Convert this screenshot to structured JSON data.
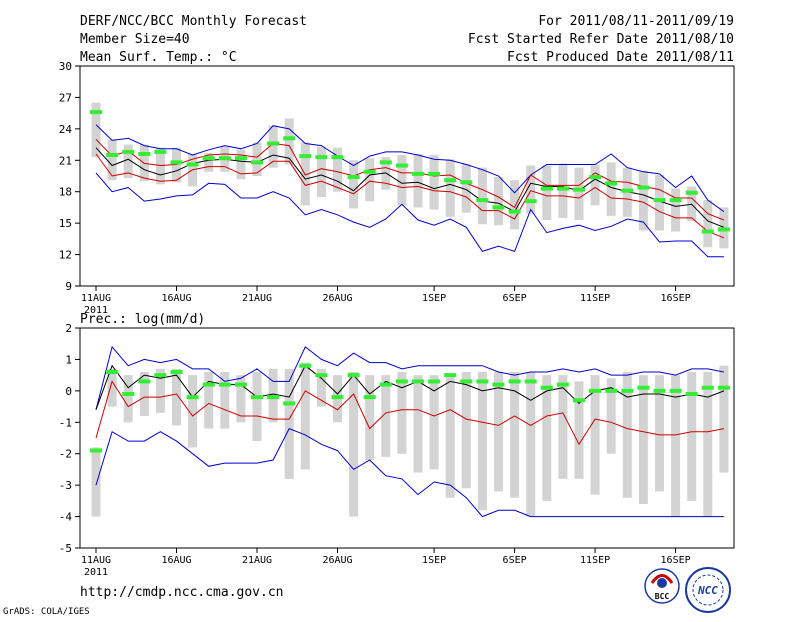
{
  "header": {
    "title": "DERF/NCC/BCC Monthly Forecast",
    "member_size": "Member Size=40",
    "variable": "Mean Surf. Temp.: °C",
    "forecast_period": "For 2011/08/11-2011/09/19",
    "fcst_started": "Fcst Started Refer Date 2011/08/10",
    "fcst_produced": "Fcst Produced Date 2011/08/11"
  },
  "footer": {
    "url": "http://cmdp.ncc.cma.gov.cn",
    "credit": "GrADS: COLA/IGES",
    "logo_bcc": "BCC",
    "logo_ncc": "NCC"
  },
  "colors": {
    "box": "#d3d3d3",
    "obs": "#33ee33",
    "ensemble_mean": "#000000",
    "spread": "#cc0000",
    "envelope": "#0000cc"
  },
  "chart_data": [
    {
      "type": "line",
      "title": "Mean Surf. Temp.: °C",
      "xlabel": "",
      "ylabel": "",
      "ylim": [
        9,
        30
      ],
      "yticks": [
        9,
        12,
        15,
        18,
        21,
        24,
        27,
        30
      ],
      "ytick_labels": [
        "9",
        "12",
        "15",
        "18",
        "21",
        "24",
        "27",
        "30"
      ],
      "xtick_days": [
        0,
        5,
        10,
        15,
        21,
        26,
        31,
        36
      ],
      "xtick_labels": [
        "11AUG",
        "16AUG",
        "21AUG",
        "26AUG",
        "1SEP",
        "6SEP",
        "11SEP",
        "16SEP"
      ],
      "year_label": "2011",
      "days": 40,
      "series": [
        {
          "name": "max",
          "values": [
            24.4,
            22.9,
            23.1,
            22.4,
            22.1,
            22.1,
            21.5,
            22.0,
            22.4,
            22.1,
            22.6,
            24.3,
            24.0,
            22.6,
            22.4,
            21.4,
            20.5,
            21.4,
            21.8,
            21.8,
            21.5,
            21.1,
            21.0,
            20.6,
            20.1,
            19.5,
            17.9,
            19.6,
            20.6,
            20.6,
            20.6,
            20.6,
            21.6,
            20.3,
            19.9,
            19.7,
            18.4,
            19.5,
            17.2,
            16.1
          ]
        },
        {
          "name": "spread_upper",
          "values": [
            23.0,
            21.4,
            21.9,
            20.7,
            20.5,
            20.6,
            21.1,
            21.5,
            21.6,
            21.5,
            21.3,
            22.6,
            22.4,
            19.6,
            20.2,
            19.9,
            19.5,
            20.1,
            20.3,
            19.8,
            19.8,
            19.5,
            19.6,
            18.8,
            18.2,
            17.5,
            16.5,
            19.6,
            18.6,
            18.6,
            18.6,
            19.8,
            19.0,
            18.9,
            18.5,
            18.2,
            17.4,
            17.4,
            15.9,
            15.3
          ]
        },
        {
          "name": "mean",
          "values": [
            22.2,
            20.5,
            21.1,
            20.1,
            19.6,
            20.0,
            20.7,
            21.0,
            21.1,
            20.9,
            20.8,
            21.5,
            21.2,
            19.2,
            19.6,
            19.0,
            18.1,
            19.6,
            19.8,
            18.8,
            18.9,
            18.3,
            18.7,
            18.2,
            17.1,
            16.9,
            16.1,
            18.8,
            18.5,
            18.5,
            18.1,
            19.2,
            18.4,
            18.0,
            17.7,
            17.1,
            16.6,
            16.8,
            15.2,
            14.6
          ]
        },
        {
          "name": "spread_lower",
          "values": [
            21.6,
            19.5,
            19.8,
            19.3,
            19.0,
            19.1,
            20.1,
            20.4,
            20.4,
            19.7,
            19.8,
            20.9,
            20.9,
            18.6,
            19.0,
            18.4,
            17.8,
            19.0,
            18.8,
            18.4,
            18.5,
            18.1,
            18.0,
            17.5,
            16.2,
            16.2,
            15.4,
            18.1,
            17.6,
            17.6,
            17.4,
            18.4,
            17.4,
            17.3,
            17.0,
            16.1,
            15.5,
            15.5,
            14.2,
            13.6
          ]
        },
        {
          "name": "min",
          "values": [
            19.8,
            18.0,
            18.4,
            17.1,
            17.3,
            17.6,
            17.7,
            18.8,
            18.7,
            17.4,
            17.4,
            18.0,
            17.4,
            15.8,
            16.3,
            15.8,
            15.1,
            14.6,
            15.4,
            16.8,
            15.3,
            14.8,
            15.4,
            14.6,
            12.3,
            12.8,
            12.3,
            16.3,
            14.1,
            14.5,
            14.8,
            14.3,
            14.7,
            15.4,
            15.1,
            13.2,
            13.3,
            13.3,
            11.8,
            11.8
          ]
        },
        {
          "name": "observed",
          "values": [
            25.6,
            21.5,
            21.8,
            21.6,
            21.8,
            20.8,
            20.6,
            21.2,
            21.2,
            21.2,
            20.8,
            22.6,
            23.1,
            21.4,
            21.3,
            21.3,
            19.4,
            19.9,
            20.8,
            20.5,
            19.7,
            19.7,
            19.1,
            18.9,
            17.2,
            16.5,
            16.1,
            17.1,
            18.3,
            18.3,
            18.2,
            19.4,
            18.8,
            18.1,
            18.4,
            17.2,
            17.2,
            17.9,
            14.2,
            14.4
          ]
        },
        {
          "name": "box_high",
          "values": [
            26.5,
            23.0,
            22.5,
            22.5,
            22.2,
            22.2,
            21.6,
            21.7,
            22.3,
            22.0,
            22.7,
            24.3,
            25.0,
            22.7,
            22.3,
            22.2,
            21.0,
            21.2,
            21.3,
            21.5,
            21.6,
            21.5,
            21.1,
            20.6,
            20.3,
            19.4,
            19.1,
            20.5,
            20.5,
            20.7,
            20.3,
            20.6,
            20.8,
            20.3,
            20.0,
            19.6,
            18.3,
            18.5,
            17.2,
            16.5
          ]
        },
        {
          "name": "box_low",
          "values": [
            21.3,
            19.1,
            19.3,
            19.0,
            18.7,
            18.9,
            18.5,
            19.9,
            19.9,
            19.2,
            19.5,
            20.3,
            20.6,
            16.7,
            17.5,
            18.0,
            16.4,
            17.1,
            18.2,
            16.7,
            16.5,
            16.3,
            15.6,
            16.0,
            14.9,
            14.8,
            14.4,
            15.9,
            15.3,
            15.5,
            15.3,
            16.7,
            15.7,
            15.6,
            14.3,
            14.3,
            14.2,
            15.2,
            12.7,
            12.6
          ]
        }
      ]
    },
    {
      "type": "line",
      "title": "Prec.: log(mm/d)",
      "xlabel": "",
      "ylabel": "",
      "ylim": [
        -5,
        2
      ],
      "yticks": [
        -5,
        -4,
        -3,
        -2,
        -1,
        0,
        1,
        2
      ],
      "ytick_labels": [
        "-5",
        "-4",
        "-3",
        "-2",
        "-1",
        "0",
        "1",
        "2"
      ],
      "xtick_days": [
        0,
        5,
        10,
        15,
        21,
        26,
        31,
        36
      ],
      "xtick_labels": [
        "11AUG",
        "16AUG",
        "21AUG",
        "26AUG",
        "1SEP",
        "6SEP",
        "11SEP",
        "16SEP"
      ],
      "year_label": "2011",
      "days": 40,
      "series": [
        {
          "name": "max",
          "values": [
            -0.6,
            1.4,
            0.8,
            1.0,
            0.9,
            1.0,
            0.7,
            0.7,
            0.3,
            0.4,
            0.7,
            0.3,
            0.3,
            1.4,
            1.0,
            0.8,
            1.2,
            0.9,
            0.9,
            0.7,
            0.8,
            0.8,
            0.8,
            0.8,
            0.8,
            0.6,
            0.5,
            0.6,
            0.6,
            0.7,
            0.6,
            0.7,
            0.5,
            0.5,
            0.6,
            0.6,
            0.5,
            0.7,
            0.7,
            0.6
          ]
        },
        {
          "name": "mean",
          "values": [
            -0.6,
            0.8,
            0.1,
            0.5,
            0.4,
            0.5,
            -0.2,
            0.3,
            0.2,
            0.2,
            -0.2,
            -0.1,
            -0.2,
            0.8,
            0.4,
            -0.1,
            0.5,
            -0.1,
            0.3,
            0.1,
            0.3,
            0.0,
            0.3,
            0.2,
            0.0,
            0.1,
            0.0,
            -0.3,
            0.0,
            0.1,
            -0.4,
            0.0,
            0.1,
            -0.2,
            -0.1,
            -0.1,
            -0.2,
            -0.1,
            -0.2,
            0.0
          ]
        },
        {
          "name": "spread_lower",
          "values": [
            -1.5,
            0.3,
            -0.5,
            -0.2,
            -0.2,
            -0.1,
            -0.8,
            -0.4,
            -0.6,
            -0.8,
            -0.8,
            -0.9,
            -0.9,
            0.0,
            -0.3,
            -0.6,
            -0.1,
            -1.2,
            -0.7,
            -0.6,
            -0.6,
            -0.8,
            -0.6,
            -0.9,
            -1.0,
            -1.1,
            -0.8,
            -1.1,
            -0.8,
            -0.7,
            -1.7,
            -0.9,
            -1.0,
            -1.2,
            -1.3,
            -1.4,
            -1.4,
            -1.3,
            -1.3,
            -1.2
          ]
        },
        {
          "name": "min",
          "values": [
            -3.0,
            -1.3,
            -1.6,
            -1.6,
            -1.3,
            -1.6,
            -2.0,
            -2.4,
            -2.3,
            -2.3,
            -2.3,
            -2.2,
            -1.2,
            -1.4,
            -1.7,
            -1.9,
            -2.5,
            -2.2,
            -2.7,
            -2.8,
            -3.3,
            -2.9,
            -3.0,
            -3.4,
            -4.0,
            -3.8,
            -3.8,
            -4.0,
            -4.0,
            -4.0,
            -4.0,
            -4.0,
            -4.0,
            -4.0,
            -4.0,
            -4.0,
            -4.0,
            -4.0,
            -4.0,
            -4.0
          ]
        },
        {
          "name": "observed",
          "values": [
            -1.9,
            0.6,
            -0.1,
            0.3,
            0.5,
            0.6,
            -0.2,
            0.2,
            0.2,
            0.2,
            -0.2,
            -0.2,
            -0.4,
            0.8,
            0.5,
            -0.2,
            0.5,
            -0.2,
            0.2,
            0.3,
            0.3,
            0.3,
            0.5,
            0.3,
            0.3,
            0.2,
            0.3,
            0.3,
            0.1,
            0.2,
            -0.3,
            0.0,
            0.0,
            0.0,
            0.1,
            0.0,
            0.0,
            -0.1,
            0.1,
            0.1
          ]
        },
        {
          "name": "box_high",
          "values": [
            -1.8,
            0.7,
            0.5,
            0.6,
            0.7,
            0.7,
            0.5,
            0.6,
            0.6,
            0.5,
            0.6,
            0.7,
            0.7,
            0.9,
            0.7,
            0.5,
            0.6,
            0.5,
            0.5,
            0.6,
            0.5,
            0.5,
            0.5,
            0.6,
            0.6,
            0.6,
            0.6,
            0.6,
            0.5,
            0.5,
            0.3,
            0.5,
            0.4,
            0.6,
            0.5,
            0.5,
            0.5,
            0.6,
            0.6,
            0.8
          ]
        },
        {
          "name": "box_low",
          "values": [
            -4.0,
            -0.5,
            -1.0,
            -0.8,
            -0.7,
            -1.1,
            -1.8,
            -1.2,
            -1.2,
            -1.0,
            -1.6,
            -1.0,
            -2.8,
            -2.5,
            -0.5,
            -1.0,
            -4.0,
            -2.2,
            -2.1,
            -2.0,
            -2.6,
            -2.5,
            -3.4,
            -3.1,
            -3.8,
            -3.2,
            -3.4,
            -4.0,
            -3.5,
            -2.8,
            -2.8,
            -3.3,
            -2.0,
            -3.4,
            -3.6,
            -3.2,
            -4.0,
            -3.5,
            -4.0,
            -2.6
          ]
        }
      ]
    }
  ]
}
